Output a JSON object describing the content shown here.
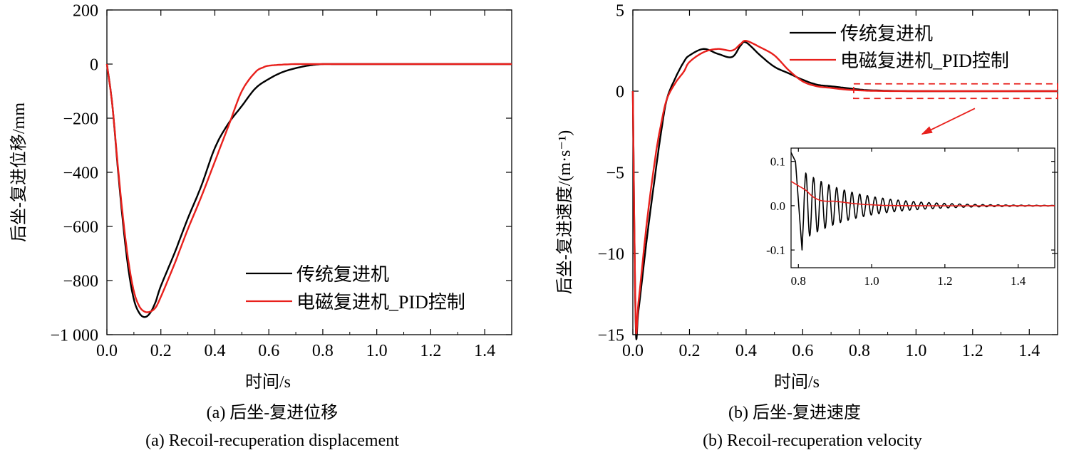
{
  "colors": {
    "traditional": "#000000",
    "em_pid": "#e8201c",
    "axis": "#000000"
  },
  "chart_data": [
    {
      "type": "line",
      "panel": "a",
      "caption_cn": "(a) 后坐-复进位移",
      "caption_en": "(a) Recoil-recuperation displacement",
      "xlabel": "时间/s",
      "ylabel": "后坐-复进位移/mm",
      "xlim": [
        0,
        1.5
      ],
      "ylim": [
        -1000,
        200
      ],
      "xticks": [
        0,
        0.2,
        0.4,
        0.6,
        0.8,
        1.0,
        1.2,
        1.4
      ],
      "xtick_labels": [
        "0.0",
        "0.2",
        "0.4",
        "0.6",
        "0.8",
        "1.0",
        "1.2",
        "1.4"
      ],
      "yticks": [
        200,
        0,
        -200,
        -400,
        -600,
        -800,
        -1000
      ],
      "ytick_labels": [
        "200",
        "0",
        "−200",
        "−400",
        "−600",
        "−800",
        "−1 000"
      ],
      "legend_position": "lower-right",
      "series": [
        {
          "name": "传统复进机",
          "color": "#000000",
          "x": [
            0,
            0.02,
            0.04,
            0.06,
            0.08,
            0.1,
            0.12,
            0.14,
            0.16,
            0.18,
            0.2,
            0.25,
            0.3,
            0.35,
            0.4,
            0.45,
            0.5,
            0.55,
            0.6,
            0.65,
            0.7,
            0.75,
            0.8,
            0.85,
            1.0,
            1.2,
            1.5
          ],
          "y": [
            0,
            -150,
            -380,
            -590,
            -760,
            -870,
            -920,
            -935,
            -920,
            -880,
            -820,
            -700,
            -570,
            -450,
            -310,
            -220,
            -155,
            -90,
            -55,
            -30,
            -15,
            -5,
            0,
            0,
            0,
            0,
            0
          ]
        },
        {
          "name": "电磁复进机_PID控制",
          "color": "#e8201c",
          "x": [
            0,
            0.02,
            0.04,
            0.06,
            0.08,
            0.1,
            0.12,
            0.14,
            0.16,
            0.18,
            0.2,
            0.25,
            0.3,
            0.35,
            0.4,
            0.45,
            0.5,
            0.55,
            0.58,
            0.6,
            0.65,
            0.7,
            0.75,
            0.8,
            1.0,
            1.2,
            1.5
          ],
          "y": [
            0,
            -150,
            -370,
            -570,
            -730,
            -840,
            -895,
            -915,
            -915,
            -900,
            -860,
            -740,
            -610,
            -490,
            -360,
            -230,
            -100,
            -30,
            -12,
            -6,
            -2,
            0,
            0,
            0,
            0,
            0,
            0
          ]
        }
      ]
    },
    {
      "type": "line",
      "panel": "b",
      "caption_cn": "(b) 后坐-复进速度",
      "caption_en": "(b) Recoil-recuperation velocity",
      "xlabel": "时间/s",
      "ylabel": "后坐-复进速度/(m·s⁻¹)",
      "xlim": [
        0,
        1.5
      ],
      "ylim": [
        -15,
        5
      ],
      "xticks": [
        0,
        0.2,
        0.4,
        0.6,
        0.8,
        1.0,
        1.2,
        1.4
      ],
      "xtick_labels": [
        "0.0",
        "0.2",
        "0.4",
        "0.6",
        "0.8",
        "1.0",
        "1.2",
        "1.4"
      ],
      "yticks": [
        5,
        0,
        -5,
        -10,
        -15
      ],
      "ytick_labels": [
        "5",
        "0",
        "−5",
        "−10",
        "−15"
      ],
      "legend_position": "top-right",
      "series": [
        {
          "name": "传统复进机",
          "color": "#000000",
          "x": [
            0,
            0.01,
            0.02,
            0.05,
            0.08,
            0.1,
            0.12,
            0.15,
            0.18,
            0.2,
            0.25,
            0.3,
            0.35,
            0.38,
            0.4,
            0.45,
            0.5,
            0.55,
            0.6,
            0.65,
            0.7,
            0.75,
            0.8,
            0.85,
            1.0,
            1.5
          ],
          "y": [
            0,
            -14.3,
            -13.5,
            -9,
            -5,
            -2.5,
            -0.5,
            0.8,
            1.8,
            2.2,
            2.6,
            2.3,
            2.1,
            2.8,
            3.0,
            2.2,
            1.5,
            1.1,
            0.7,
            0.4,
            0.3,
            0.2,
            0.1,
            0.05,
            0,
            0
          ]
        },
        {
          "name": "电磁复进机_PID控制",
          "color": "#e8201c",
          "x": [
            0,
            0.01,
            0.02,
            0.05,
            0.08,
            0.1,
            0.12,
            0.15,
            0.18,
            0.2,
            0.25,
            0.3,
            0.35,
            0.38,
            0.4,
            0.45,
            0.5,
            0.55,
            0.6,
            0.65,
            0.7,
            0.75,
            0.8,
            0.85,
            1.0,
            1.5
          ],
          "y": [
            0,
            -14.0,
            -13.0,
            -8,
            -4,
            -2,
            -0.5,
            0.5,
            1.2,
            1.8,
            2.4,
            2.6,
            2.5,
            2.9,
            3.1,
            2.7,
            2.2,
            1.3,
            0.6,
            0.3,
            0.2,
            0.1,
            0.05,
            0.02,
            0,
            0
          ]
        }
      ]
    },
    {
      "type": "line",
      "panel": "b-inset",
      "xlim": [
        0.78,
        1.5
      ],
      "ylim": [
        -0.14,
        0.13
      ],
      "xticks": [
        0.8,
        1.0,
        1.2,
        1.4
      ],
      "xtick_labels": [
        "0.8",
        "1.0",
        "1.2",
        "1.4"
      ],
      "yticks": [
        0.1,
        0.0,
        -0.1
      ],
      "ytick_labels": [
        "0.1",
        "0.0",
        "-0.1"
      ],
      "series": [
        {
          "name": "传统复进机",
          "color": "#000000",
          "oscillation": {
            "start_x": 0.78,
            "start_y": 0.12,
            "dip_x": 0.81,
            "dip_y": -0.1,
            "amplitude": 0.08,
            "period": 0.021,
            "decay": 7.0
          }
        },
        {
          "name": "电磁复进机_PID控制",
          "color": "#e8201c",
          "x": [
            0.78,
            0.8,
            0.82,
            0.84,
            0.86,
            0.88,
            0.9,
            0.95,
            1.0,
            1.1,
            1.5
          ],
          "y": [
            0.055,
            0.045,
            0.035,
            0.02,
            0.012,
            0.01,
            0.01,
            0.005,
            0.002,
            0,
            0
          ]
        }
      ]
    }
  ],
  "legend": {
    "items": [
      {
        "label": "传统复进机"
      },
      {
        "label": "电磁复进机_PID控制"
      }
    ]
  }
}
